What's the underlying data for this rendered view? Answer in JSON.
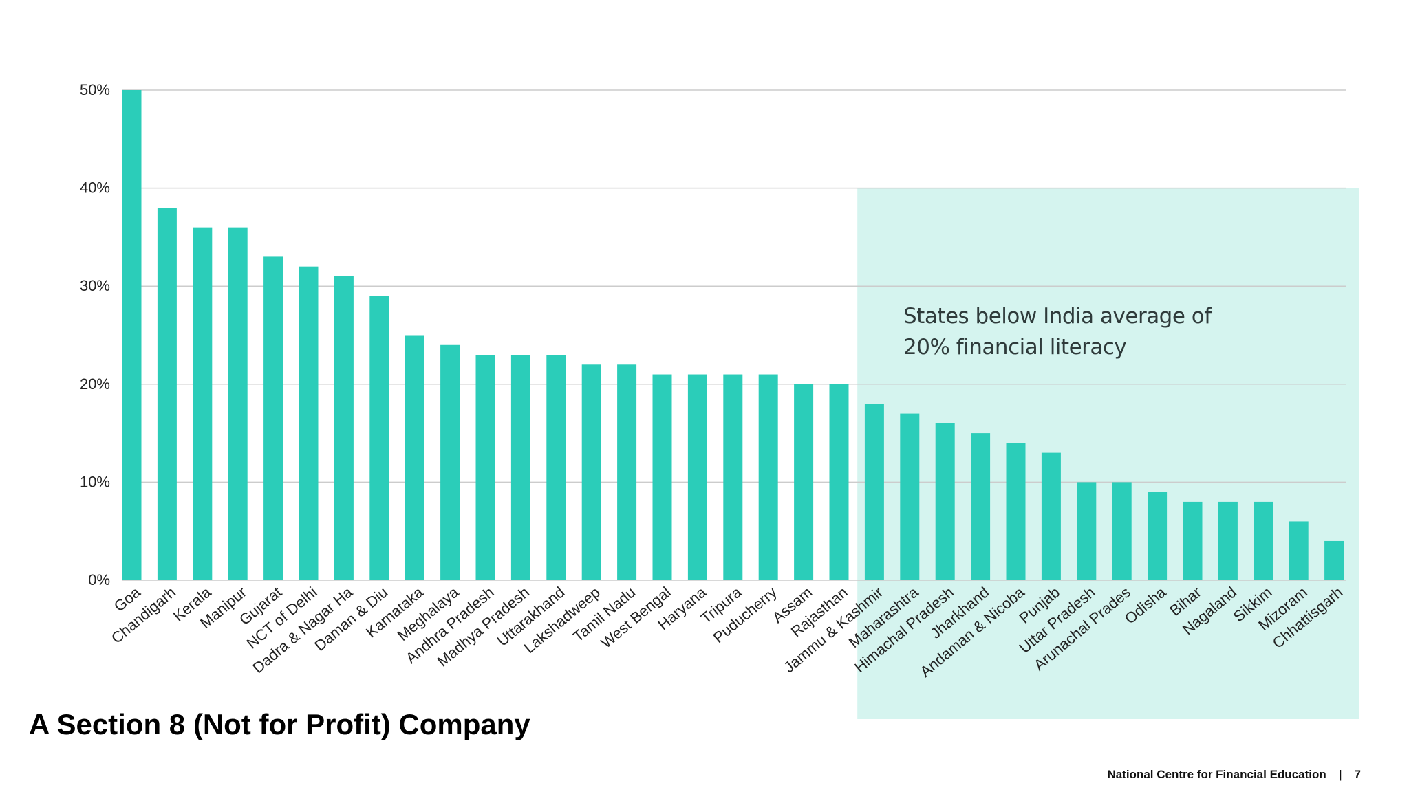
{
  "title": "A Section 8 (Not for Profit) Company",
  "footer": {
    "org": "National Centre for Financial Education",
    "separator": "|",
    "page": "7"
  },
  "colors": {
    "bar": "#2bcdb9",
    "highlight": "#d5f4ef",
    "grid": "#cccccc",
    "text": "#222222"
  },
  "chart_data": {
    "type": "bar",
    "title": "",
    "xlabel": "",
    "ylabel": "",
    "ylim": [
      0,
      50
    ],
    "yticks": [
      0,
      10,
      20,
      30,
      40,
      50
    ],
    "ytick_labels": [
      "0%",
      "10%",
      "20%",
      "30%",
      "40%",
      "50%"
    ],
    "grid": true,
    "categories": [
      "Goa",
      "Chandigarh",
      "Kerala",
      "Manipur",
      "Gujarat",
      "NCT of Delhi",
      "Dadra & Nagar Ha",
      "Daman & Diu",
      "Karnataka",
      "Meghalaya",
      "Andhra Pradesh",
      "Madhya Pradesh",
      "Uttarakhand",
      "Lakshadweep",
      "Tamil Nadu",
      "West Bengal",
      "Haryana",
      "Tripura",
      "Puducherry",
      "Assam",
      "Rajasthan",
      "Jammu & Kashmir",
      "Maharashtra",
      "Himachal Pradesh",
      "Jharkhand",
      "Andaman & Nicoba",
      "Punjab",
      "Uttar Pradesh",
      "Arunachal Prades",
      "Odisha",
      "Bihar",
      "Nagaland",
      "Sikkim",
      "Mizoram",
      "Chhattisgarh"
    ],
    "values": [
      50,
      38,
      36,
      36,
      33,
      32,
      31,
      29,
      25,
      24,
      23,
      23,
      23,
      22,
      22,
      21,
      21,
      21,
      21,
      20,
      20,
      18,
      17,
      16,
      15,
      14,
      13,
      10,
      10,
      9,
      8,
      8,
      8,
      6,
      4
    ],
    "highlight": {
      "from_category": "Jammu & Kashmir",
      "ymax": 40
    },
    "annotation": [
      "States below India average of",
      "20% financial literacy"
    ]
  }
}
